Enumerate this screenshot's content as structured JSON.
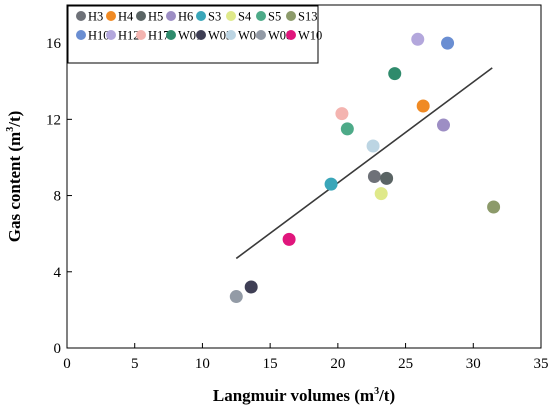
{
  "chart_data": {
    "type": "scatter",
    "xlabel": "Langmuir volumes (m³/t)",
    "xlabel_parts": [
      "Langmuir volumes (m",
      "3",
      "/t)"
    ],
    "ylabel": "Gas content (m³/t)",
    "ylabel_parts": [
      "Gas content (m",
      "3",
      "/t)"
    ],
    "xlim": [
      0,
      35
    ],
    "ylim": [
      0,
      18
    ],
    "xticks": [
      "0",
      "5",
      "10",
      "15",
      "20",
      "25",
      "30",
      "35"
    ],
    "yticks": [
      "0",
      "4",
      "8",
      "12",
      "16"
    ],
    "grid": false,
    "legend_position": "top-left",
    "series": [
      {
        "name": "H3",
        "color": "#6e7178",
        "x": 22.7,
        "y": 9.0
      },
      {
        "name": "H4",
        "color": "#f08a24",
        "x": 26.3,
        "y": 12.7
      },
      {
        "name": "H5",
        "color": "#5a6464",
        "x": 23.6,
        "y": 8.9
      },
      {
        "name": "H6",
        "color": "#9d8ec4",
        "x": 27.8,
        "y": 11.7
      },
      {
        "name": "S3",
        "color": "#3aa6b9",
        "x": 19.5,
        "y": 8.6
      },
      {
        "name": "S4",
        "color": "#dfe98a",
        "x": 23.2,
        "y": 8.1
      },
      {
        "name": "S5",
        "color": "#4daa88",
        "x": 20.7,
        "y": 11.5
      },
      {
        "name": "S13",
        "color": "#8c9a6a",
        "x": 31.5,
        "y": 7.4
      },
      {
        "name": "H10",
        "color": "#6a8ed2",
        "x": 28.1,
        "y": 16.0
      },
      {
        "name": "H12",
        "color": "#b3a7dc",
        "x": 25.9,
        "y": 16.2
      },
      {
        "name": "H17",
        "color": "#f4b4b0",
        "x": 20.3,
        "y": 12.3
      },
      {
        "name": "W01",
        "color": "#2f8b6c",
        "x": 24.2,
        "y": 14.4
      },
      {
        "name": "W03",
        "color": "#3f3f55",
        "x": 13.6,
        "y": 3.2
      },
      {
        "name": "W04",
        "color": "#bcd5e3",
        "x": 22.6,
        "y": 10.6
      },
      {
        "name": "W08",
        "color": "#939ba6",
        "x": 12.5,
        "y": 2.7
      },
      {
        "name": "W10",
        "color": "#e0167c",
        "x": 16.4,
        "y": 5.7
      }
    ],
    "trendline": {
      "x": [
        12.5,
        31.4
      ],
      "y": [
        4.7,
        14.7
      ],
      "color": "#3a3a3a"
    }
  }
}
